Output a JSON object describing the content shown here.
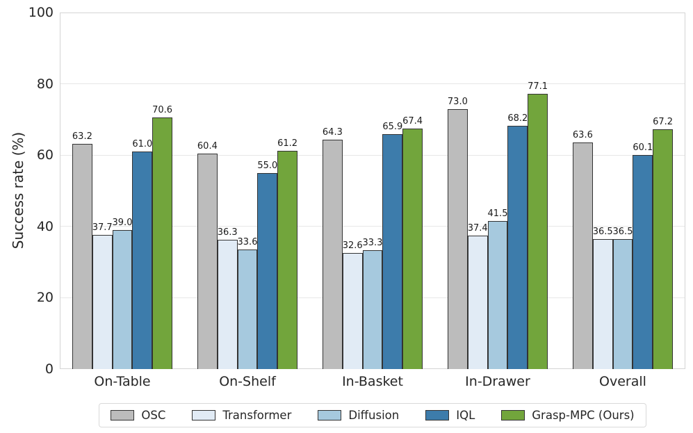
{
  "chart_data": {
    "type": "bar",
    "title": "",
    "xlabel": "",
    "ylabel": "Success rate (%)",
    "ylim": [
      0,
      100
    ],
    "yticks": [
      0,
      20,
      40,
      60,
      80,
      100
    ],
    "grid": "horizontal",
    "legend_position": "bottom-center",
    "value_label_decimals": 1,
    "categories": [
      "On-Table",
      "On-Shelf",
      "In-Basket",
      "In-Drawer",
      "Overall"
    ],
    "series": [
      {
        "name": "OSC",
        "color": "#bcbcbc",
        "values": [
          63.2,
          60.4,
          64.3,
          73.0,
          63.6
        ]
      },
      {
        "name": "Transformer",
        "color": "#e1ebf5",
        "values": [
          37.7,
          36.3,
          32.6,
          37.4,
          36.5
        ]
      },
      {
        "name": "Diffusion",
        "color": "#a6c9de",
        "values": [
          39.0,
          33.6,
          33.3,
          41.5,
          36.5
        ]
      },
      {
        "name": "IQL",
        "color": "#3d7cab",
        "values": [
          61.0,
          55.0,
          65.9,
          68.2,
          60.1
        ]
      },
      {
        "name": "Grasp-MPC (Ours)",
        "color": "#72a53c",
        "values": [
          70.6,
          61.2,
          67.4,
          77.1,
          67.2
        ]
      }
    ]
  },
  "style": {
    "bar_edge_color": "#333333",
    "grid_color": "#e7e7e7",
    "spine_color": "#d4d4d4",
    "tick_text_color": "#262626",
    "value_text_color": "#1a1a1a",
    "legend_border_color": "#d9d9d9",
    "background": "#ffffff"
  }
}
